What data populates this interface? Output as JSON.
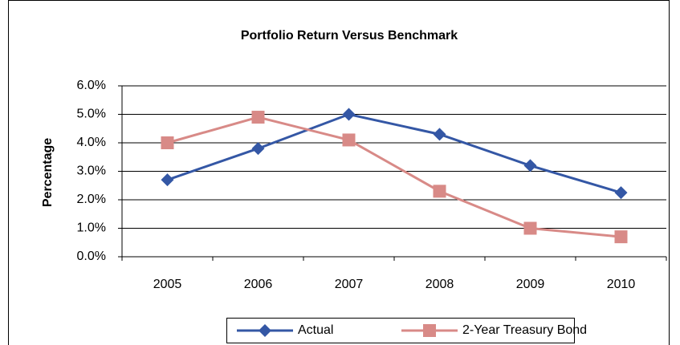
{
  "chart_data": {
    "type": "line",
    "title": "Portfolio Return Versus Benchmark",
    "y_label": "Percentage",
    "categories": [
      "2005",
      "2006",
      "2007",
      "2008",
      "2009",
      "2010"
    ],
    "series": [
      {
        "name": "Actual",
        "color": "#3457a5",
        "marker": "diamond",
        "values": [
          2.7,
          3.8,
          5.0,
          4.3,
          3.2,
          2.25
        ]
      },
      {
        "name": "2-Year Treasury Bond",
        "color": "#d88a87",
        "marker": "square",
        "values": [
          4.0,
          4.9,
          4.1,
          2.3,
          1.0,
          0.7
        ]
      }
    ],
    "ylim": [
      0,
      6
    ],
    "yticks": [
      {
        "value": 0,
        "label": "0.0%"
      },
      {
        "value": 1,
        "label": "1.0%"
      },
      {
        "value": 2,
        "label": "2.0%"
      },
      {
        "value": 3,
        "label": "3.0%"
      },
      {
        "value": 4,
        "label": "4.0%"
      },
      {
        "value": 5,
        "label": "5.0%"
      },
      {
        "value": 6,
        "label": "6.0%"
      }
    ],
    "grid": true,
    "legend": "bottom"
  }
}
